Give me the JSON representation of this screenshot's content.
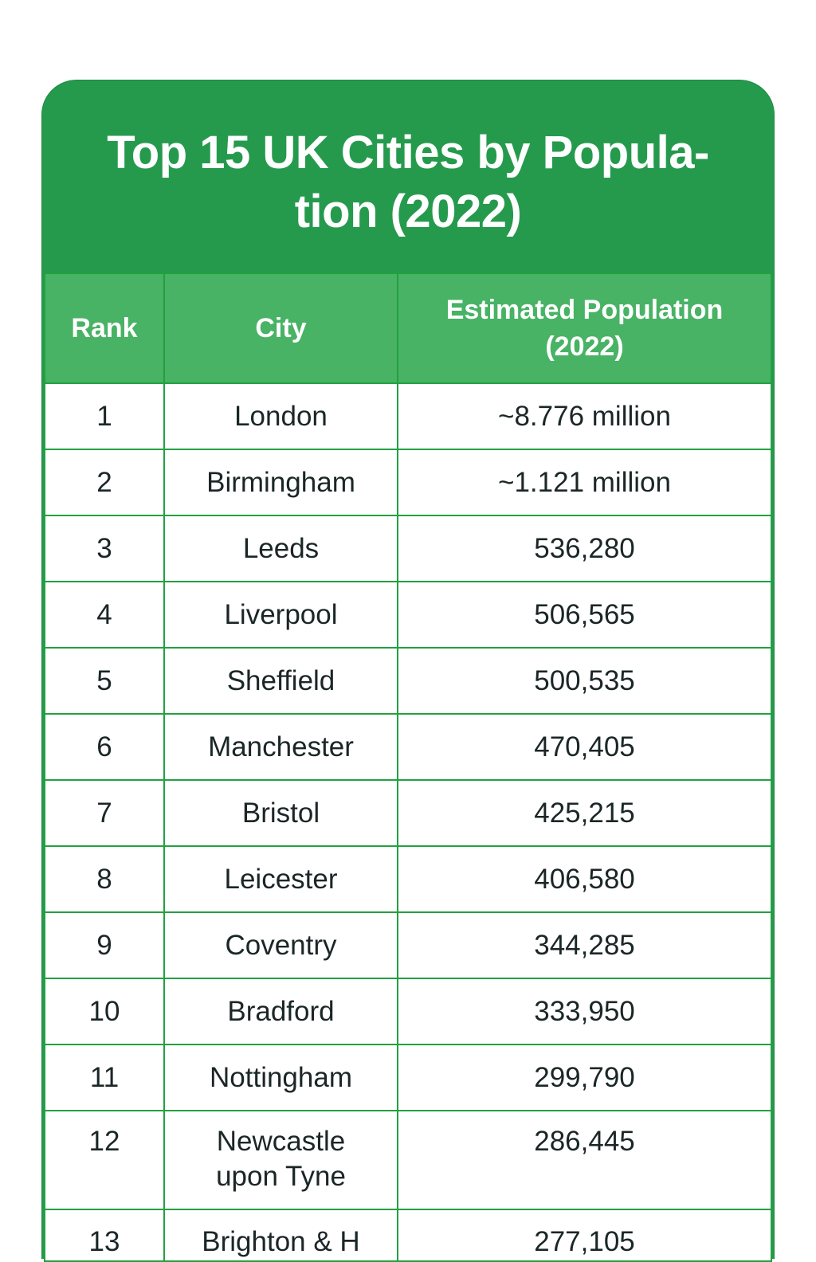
{
  "title_lines": [
    "Top 15 UK Cities by Popula-",
    "tion (2022)"
  ],
  "headers": [
    "Rank",
    "City",
    "Estimated Population (2022)"
  ],
  "rows": [
    {
      "rank": "1",
      "city": "London",
      "population": "~8.776 million"
    },
    {
      "rank": "2",
      "city": "Birmingham",
      "population": "~1.121 million"
    },
    {
      "rank": "3",
      "city": "Leeds",
      "population": "536,280"
    },
    {
      "rank": "4",
      "city": "Liverpool",
      "population": "506,565"
    },
    {
      "rank": "5",
      "city": "Sheffield",
      "population": "500,535"
    },
    {
      "rank": "6",
      "city": "Manchester",
      "population": "470,405"
    },
    {
      "rank": "7",
      "city": "Bristol",
      "population": "425,215"
    },
    {
      "rank": "8",
      "city": "Leicester",
      "population": "406,580"
    },
    {
      "rank": "9",
      "city": "Coventry",
      "population": "344,285"
    },
    {
      "rank": "10",
      "city": "Bradford",
      "population": "333,950"
    },
    {
      "rank": "11",
      "city": "Nottingham",
      "population": "299,790"
    },
    {
      "rank": "12",
      "city": "Newcastle upon Tyne",
      "population": "286,445"
    },
    {
      "rank": "13",
      "city": "Brighton & H",
      "population": "277,105"
    }
  ],
  "colors": {
    "title_bg": "#259a4d",
    "header_bg": "#48b265",
    "border": "#22a140",
    "text": "#1b2626"
  }
}
